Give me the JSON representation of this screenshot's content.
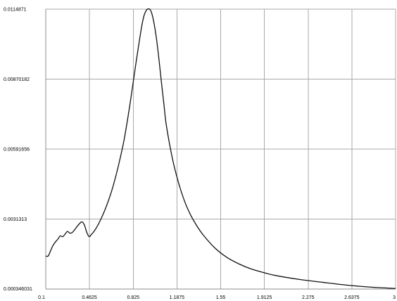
{
  "chart_data": {
    "type": "line",
    "title": "",
    "xlabel": "",
    "ylabel": "",
    "grid": true,
    "legend": "none",
    "xlim": [
      0.1,
      3
    ],
    "ylim": [
      0.000346031,
      0.0114871
    ],
    "x_ticks": [
      "0.1",
      "0.4625",
      "0.825",
      "1.1875",
      "1.55",
      "1.9125",
      "2.275",
      "2.6375",
      "3"
    ],
    "y_ticks": [
      "0.000346031",
      "0.0031313",
      "0.00591656",
      "0.00870182",
      "0.0114871"
    ],
    "series": [
      {
        "color": "#111111",
        "x": [
          0.1,
          0.12,
          0.14,
          0.16,
          0.18,
          0.2,
          0.22,
          0.24,
          0.26,
          0.28,
          0.3,
          0.32,
          0.34,
          0.36,
          0.38,
          0.4,
          0.42,
          0.44,
          0.46,
          0.48,
          0.5,
          0.53,
          0.56,
          0.6,
          0.65,
          0.7,
          0.75,
          0.8,
          0.85,
          0.9,
          0.93,
          0.96,
          0.98,
          1.0,
          1.02,
          1.04,
          1.06,
          1.08,
          1.1,
          1.15,
          1.2,
          1.25,
          1.3,
          1.35,
          1.4,
          1.5,
          1.6,
          1.7,
          1.8,
          1.9,
          2.0,
          2.2,
          2.4,
          2.6,
          2.8,
          3.0
        ],
        "y": [
          0.00166,
          0.00166,
          0.00187,
          0.00208,
          0.00222,
          0.00233,
          0.00246,
          0.00243,
          0.00253,
          0.00264,
          0.00257,
          0.0026,
          0.00271,
          0.00284,
          0.00295,
          0.00302,
          0.0029,
          0.0026,
          0.00243,
          0.00253,
          0.00264,
          0.00287,
          0.00316,
          0.00361,
          0.00431,
          0.00521,
          0.0063,
          0.00776,
          0.00941,
          0.01092,
          0.01141,
          0.01149,
          0.0113,
          0.01086,
          0.01023,
          0.00942,
          0.00853,
          0.00768,
          0.00685,
          0.00554,
          0.00459,
          0.00385,
          0.0033,
          0.00288,
          0.00253,
          0.00199,
          0.00161,
          0.00135,
          0.00115,
          0.00101,
          0.00089,
          0.00073,
          0.00061,
          0.0005,
          0.00042,
          0.00037
        ]
      }
    ]
  }
}
